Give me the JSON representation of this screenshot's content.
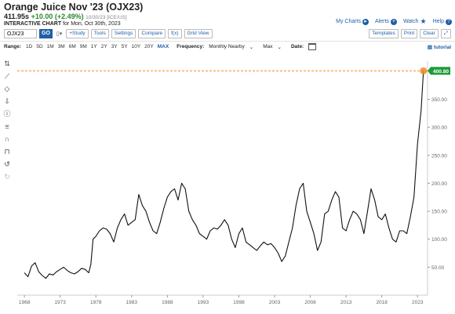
{
  "header": {
    "title": "Orange Juice Nov '23 (OJX23)",
    "price": "411.95s",
    "change": "+10.00 (+2.49%)",
    "meta": "10/30/23 [ICE/US]",
    "subtitle_bold": "INTERACTIVE CHART",
    "subtitle": "for Mon, Oct 30th, 2023"
  },
  "toplinks": {
    "my_charts": "My Charts",
    "alerts": "Alerts",
    "watch": "Watch",
    "help": "Help"
  },
  "toolbar": {
    "symbol": "OJX23",
    "go": "GO",
    "study": "+Study",
    "tools": "Tools",
    "settings": "Settings",
    "compare": "Compare",
    "fx": "f(x)",
    "grid": "Grid View",
    "templates": "Templates",
    "print": "Print",
    "clear": "Clear"
  },
  "rangebar": {
    "range_label": "Range:",
    "ranges": [
      "1D",
      "5D",
      "1M",
      "3M",
      "6M",
      "9M",
      "1Y",
      "2Y",
      "3Y",
      "5Y",
      "10Y",
      "20Y",
      "MAX"
    ],
    "active_range": "MAX",
    "frequency_label": "Frequency:",
    "frequency": "Monthly Nearby",
    "agg": "Max",
    "date_label": "Date:",
    "tutorial": "tutorial"
  },
  "chart_data": {
    "type": "line",
    "series": [
      {
        "values": [
          [
            1968,
            40
          ],
          [
            1968.5,
            33
          ],
          [
            1969,
            52
          ],
          [
            1969.5,
            58
          ],
          [
            1970,
            42
          ],
          [
            1970.5,
            35
          ],
          [
            1971,
            30
          ],
          [
            1971.5,
            38
          ],
          [
            1972,
            36
          ],
          [
            1972.5,
            42
          ],
          [
            1973,
            46
          ],
          [
            1973.5,
            50
          ],
          [
            1974,
            44
          ],
          [
            1974.5,
            40
          ],
          [
            1975,
            38
          ],
          [
            1975.5,
            42
          ],
          [
            1976,
            48
          ],
          [
            1976.5,
            46
          ],
          [
            1977,
            40
          ],
          [
            1977.3,
            55
          ],
          [
            1977.6,
            100
          ],
          [
            1978,
            105
          ],
          [
            1978.5,
            115
          ],
          [
            1979,
            120
          ],
          [
            1979.5,
            118
          ],
          [
            1980,
            110
          ],
          [
            1980.5,
            95
          ],
          [
            1981,
            120
          ],
          [
            1981.5,
            135
          ],
          [
            1982,
            145
          ],
          [
            1982.5,
            125
          ],
          [
            1983,
            130
          ],
          [
            1983.5,
            135
          ],
          [
            1984,
            180
          ],
          [
            1984.5,
            160
          ],
          [
            1985,
            150
          ],
          [
            1985.5,
            130
          ],
          [
            1986,
            115
          ],
          [
            1986.5,
            110
          ],
          [
            1987,
            130
          ],
          [
            1987.5,
            155
          ],
          [
            1988,
            175
          ],
          [
            1988.5,
            185
          ],
          [
            1989,
            190
          ],
          [
            1989.5,
            170
          ],
          [
            1990,
            200
          ],
          [
            1990.5,
            190
          ],
          [
            1991,
            150
          ],
          [
            1991.5,
            135
          ],
          [
            1992,
            125
          ],
          [
            1992.5,
            110
          ],
          [
            1993,
            105
          ],
          [
            1993.5,
            100
          ],
          [
            1994,
            115
          ],
          [
            1994.5,
            120
          ],
          [
            1995,
            118
          ],
          [
            1995.5,
            125
          ],
          [
            1996,
            135
          ],
          [
            1996.5,
            125
          ],
          [
            1997,
            100
          ],
          [
            1997.5,
            85
          ],
          [
            1998,
            110
          ],
          [
            1998.5,
            120
          ],
          [
            1999,
            95
          ],
          [
            1999.5,
            90
          ],
          [
            2000,
            85
          ],
          [
            2000.5,
            80
          ],
          [
            2001,
            88
          ],
          [
            2001.5,
            95
          ],
          [
            2002,
            90
          ],
          [
            2002.5,
            92
          ],
          [
            2003,
            85
          ],
          [
            2003.5,
            75
          ],
          [
            2004,
            60
          ],
          [
            2004.5,
            70
          ],
          [
            2005,
            95
          ],
          [
            2005.5,
            120
          ],
          [
            2006,
            160
          ],
          [
            2006.5,
            190
          ],
          [
            2007,
            200
          ],
          [
            2007.5,
            150
          ],
          [
            2008,
            130
          ],
          [
            2008.5,
            110
          ],
          [
            2009,
            80
          ],
          [
            2009.5,
            95
          ],
          [
            2010,
            145
          ],
          [
            2010.5,
            150
          ],
          [
            2011,
            170
          ],
          [
            2011.5,
            185
          ],
          [
            2012,
            175
          ],
          [
            2012.5,
            120
          ],
          [
            2013,
            115
          ],
          [
            2013.5,
            135
          ],
          [
            2014,
            150
          ],
          [
            2014.5,
            145
          ],
          [
            2015,
            135
          ],
          [
            2015.5,
            110
          ],
          [
            2016,
            150
          ],
          [
            2016.5,
            190
          ],
          [
            2017,
            170
          ],
          [
            2017.5,
            140
          ],
          [
            2018,
            135
          ],
          [
            2018.5,
            145
          ],
          [
            2019,
            120
          ],
          [
            2019.5,
            100
          ],
          [
            2020,
            95
          ],
          [
            2020.5,
            115
          ],
          [
            2021,
            115
          ],
          [
            2021.5,
            110
          ],
          [
            2022,
            140
          ],
          [
            2022.5,
            175
          ],
          [
            2023,
            270
          ],
          [
            2023.5,
            330
          ],
          [
            2023.83,
            401
          ]
        ]
      }
    ],
    "x_ticks": [
      "1968",
      "1973",
      "1978",
      "1983",
      "1988",
      "1993",
      "1998",
      "2003",
      "2008",
      "2013",
      "2018",
      "2023"
    ],
    "y_ticks": [
      "50.00",
      "100.00",
      "150.00",
      "200.00",
      "250.00",
      "300.00",
      "350.00"
    ],
    "last_value_label": "400.80",
    "last_value": 400.8,
    "xlim": [
      1967,
      2024.4
    ],
    "ylim": [
      0,
      418
    ],
    "grid": false,
    "line_color": "#111111",
    "marker_color": "#f08a24",
    "badge_color": "#1e9b3a"
  }
}
